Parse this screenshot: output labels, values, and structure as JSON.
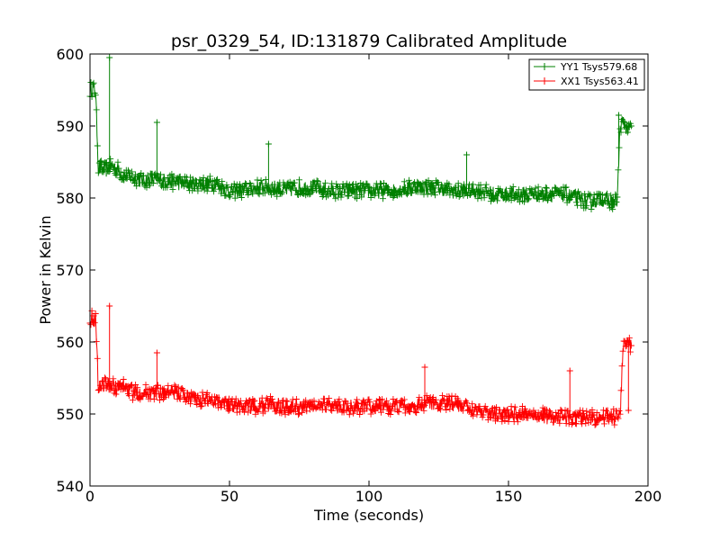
{
  "chart_data": {
    "type": "line",
    "title": "psr_0329_54, ID:131879 Calibrated Amplitude",
    "xlabel": "Time (seconds)",
    "ylabel": "Power in Kelvin",
    "xlim": [
      0,
      200
    ],
    "ylim": [
      540,
      600
    ],
    "xticks": [
      0,
      50,
      100,
      150,
      200
    ],
    "yticks": [
      540,
      550,
      560,
      570,
      580,
      590,
      600
    ],
    "xtick_labels": [
      "0",
      "50",
      "100",
      "150",
      "200"
    ],
    "ytick_labels": [
      "540",
      "550",
      "560",
      "570",
      "580",
      "590",
      "600"
    ],
    "grid": false,
    "legend_position": "top-right",
    "marker": "plus",
    "series": [
      {
        "name": "YY1 Tsys579.68",
        "color": "#008000",
        "x": [
          0,
          1,
          2,
          3,
          4,
          5,
          6,
          8,
          10,
          12,
          15,
          18,
          20,
          25,
          30,
          35,
          40,
          45,
          50,
          55,
          60,
          65,
          70,
          75,
          80,
          85,
          90,
          95,
          100,
          105,
          110,
          115,
          120,
          125,
          130,
          135,
          140,
          145,
          150,
          155,
          160,
          165,
          170,
          175,
          178,
          180,
          183,
          186,
          188,
          189,
          190,
          191,
          192,
          193,
          194
        ],
        "y": [
          595,
          595.2,
          594.8,
          584,
          584.2,
          583.8,
          584,
          584.5,
          584,
          583,
          583,
          582.5,
          582.5,
          582.5,
          582.2,
          582,
          582,
          582,
          581,
          581,
          581.5,
          581.5,
          581,
          581.5,
          581.5,
          581,
          581,
          581,
          581,
          581,
          581,
          581.5,
          581.5,
          581.5,
          581,
          581,
          581,
          580.5,
          580.5,
          580.5,
          580.5,
          580.5,
          580.5,
          580,
          579.5,
          579.5,
          580,
          579.5,
          579.5,
          579.8,
          590,
          590.5,
          590,
          589.5,
          590
        ],
        "spikes": [
          [
            7,
            599.5
          ],
          [
            24,
            590.5
          ],
          [
            64,
            587.5
          ],
          [
            135,
            586
          ],
          [
            189.5,
            591.5
          ]
        ]
      },
      {
        "name": "XX1 Tsys563.41",
        "color": "#ff0000",
        "x": [
          0,
          1,
          2,
          3,
          4,
          5,
          6,
          8,
          10,
          12,
          15,
          18,
          20,
          25,
          30,
          35,
          40,
          45,
          50,
          55,
          60,
          65,
          70,
          75,
          80,
          85,
          90,
          95,
          100,
          105,
          110,
          115,
          120,
          125,
          130,
          135,
          140,
          145,
          150,
          155,
          160,
          165,
          170,
          175,
          178,
          180,
          183,
          186,
          188,
          189,
          190,
          191,
          192,
          193,
          194
        ],
        "y": [
          563.5,
          563.2,
          563,
          554,
          553.8,
          554.2,
          554,
          554,
          553.5,
          554,
          553,
          553,
          553,
          553,
          553,
          552.5,
          552,
          552,
          551.5,
          551,
          551,
          551.5,
          551,
          551,
          551,
          551.5,
          551,
          551,
          551,
          551,
          551,
          551,
          551.5,
          551.5,
          551.5,
          551,
          550.5,
          550,
          550,
          550,
          550,
          549.5,
          549.5,
          549.5,
          549.5,
          549.5,
          549.5,
          550,
          549.5,
          550,
          549.5,
          559,
          559.5,
          560,
          559.5
        ],
        "spikes": [
          [
            7,
            565
          ],
          [
            24,
            558.5
          ],
          [
            120,
            556.5
          ],
          [
            172,
            556
          ],
          [
            193,
            550.5
          ]
        ]
      }
    ]
  }
}
